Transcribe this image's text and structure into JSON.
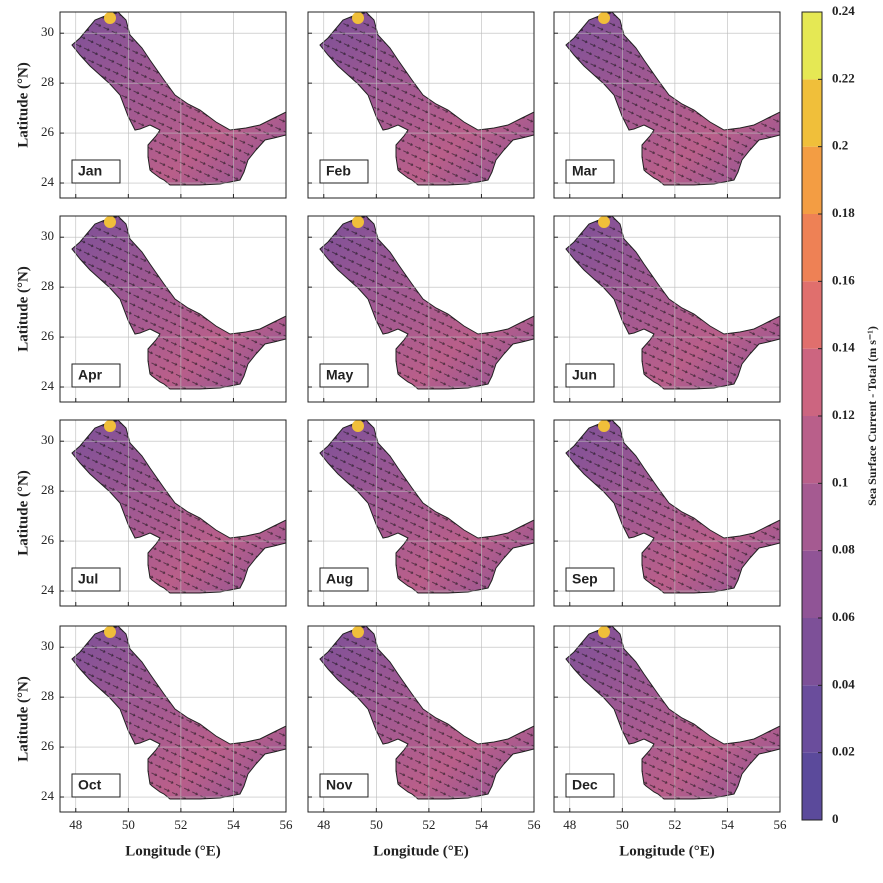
{
  "months": [
    "Jan",
    "Feb",
    "Mar",
    "Apr",
    "May",
    "Jun",
    "Jul",
    "Aug",
    "Sep",
    "Oct",
    "Nov",
    "Dec"
  ],
  "xlabel": "Longitude (°E)",
  "ylabel": "Latitude (°N)",
  "xlim": [
    47.4,
    56
  ],
  "ylim": [
    23.4,
    30.85
  ],
  "xticks": [
    48,
    50,
    52,
    54,
    56
  ],
  "yticks": [
    24,
    26,
    28,
    30
  ],
  "colorbar_label": "Sea Surface Current - Total (m s⁻¹)",
  "colorbar_ticks": [
    0,
    0.02,
    0.04,
    0.06,
    0.08,
    0.1,
    0.12,
    0.14,
    0.16,
    0.18,
    0.2,
    0.22,
    0.24
  ],
  "colorbar_colors": [
    "#5b4a9b",
    "#6a4d9c",
    "#7d5098",
    "#905496",
    "#a55a91",
    "#b95f8a",
    "#cc6580",
    "#e06f6d",
    "#ee8155",
    "#f39d43",
    "#f0bf3a",
    "#e5e854"
  ]
}
